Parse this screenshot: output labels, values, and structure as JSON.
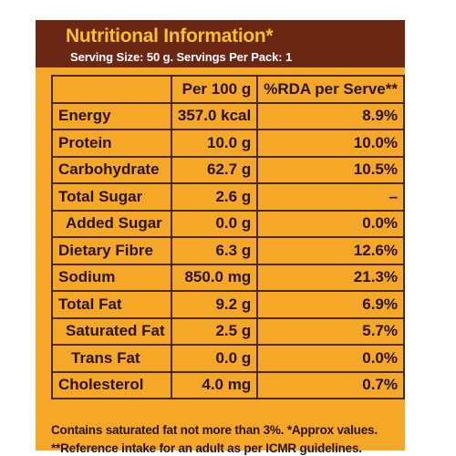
{
  "header": {
    "title": "Nutritional Information*",
    "serving": "Serving Size: 50 g. Servings Per Pack: 1"
  },
  "table": {
    "columns": [
      "",
      "Per 100 g",
      "%RDA per Serve**"
    ],
    "rows": [
      {
        "name": "Energy",
        "per100": "357.0 kcal",
        "rda": "8.9%"
      },
      {
        "name": "Protein",
        "per100": "10.0 g",
        "rda": "10.0%"
      },
      {
        "name": "Carbohydrate",
        "per100": "62.7 g",
        "rda": "10.5%"
      },
      {
        "name": "Total Sugar",
        "per100": "2.6 g",
        "rda": "–"
      },
      {
        "name": "Added Sugar",
        "per100": "0.0 g",
        "rda": "0.0%"
      },
      {
        "name": "Dietary Fibre",
        "per100": "6.3 g",
        "rda": "12.6%"
      },
      {
        "name": "Sodium",
        "per100": "850.0 mg",
        "rda": "21.3%"
      },
      {
        "name": "Total Fat",
        "per100": "9.2 g",
        "rda": "6.9%"
      },
      {
        "name": "Saturated Fat",
        "per100": "2.5 g",
        "rda": "5.7%"
      },
      {
        "name": "Trans Fat",
        "per100": "0.0 g",
        "rda": "0.0%"
      },
      {
        "name": "Cholesterol",
        "per100": "4.0 mg",
        "rda": "0.7%"
      }
    ]
  },
  "footnotes": {
    "line1": "Contains saturated fat not more than 3%. *Approx values.",
    "line2": "**Reference intake for an adult as per ICMR guidelines."
  },
  "colors": {
    "panel_background": "#f5a827",
    "header_background": "#6b2714",
    "title_text": "#f6c12b",
    "body_text": "#2a1207",
    "table_border": "#4a2a10"
  }
}
